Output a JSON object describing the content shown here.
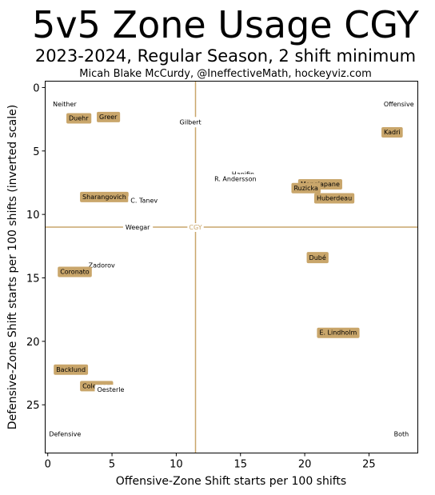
{
  "chart_data": {
    "type": "scatter",
    "title": "5v5 Zone Usage CGY",
    "subtitle": "2023-2024, Regular Season, 2 shift minimum",
    "credit": "Micah Blake McCurdy, @IneffectiveMath, hockeyviz.com",
    "xlabel": "Offensive-Zone Shift starts per 100 shifts",
    "ylabel": "Defensive-Zone Shift starts per 100 shifts (inverted scale)",
    "xlim": [
      -0.2,
      28.8
    ],
    "ylim": [
      -0.5,
      28.8
    ],
    "y_inverted": true,
    "x_ticks": [
      0,
      5,
      10,
      15,
      20,
      25
    ],
    "y_ticks": [
      0,
      5,
      10,
      15,
      20,
      25
    ],
    "grid": false,
    "accent_color": "#c9a66b",
    "team_average": {
      "label": "CGY",
      "x": 11.5,
      "y": 11.0
    },
    "corner_labels": [
      {
        "text": "Neither",
        "x": 0.4,
        "y": 1.3,
        "anchor": "start"
      },
      {
        "text": "Offensive",
        "x": 28.5,
        "y": 1.3,
        "anchor": "end"
      },
      {
        "text": "Defensive",
        "x": 0.1,
        "y": 27.3,
        "anchor": "start"
      },
      {
        "text": "Both",
        "x": 28.1,
        "y": 27.3,
        "anchor": "end"
      }
    ],
    "points": [
      {
        "name": "Duehr",
        "x": 2.4,
        "y": 2.4,
        "highlight": true
      },
      {
        "name": "Greer",
        "x": 4.7,
        "y": 2.3,
        "highlight": true
      },
      {
        "name": "Gilbert",
        "x": 11.1,
        "y": 2.7,
        "highlight": false
      },
      {
        "name": "Kadri",
        "x": 26.8,
        "y": 3.5,
        "highlight": true
      },
      {
        "name": "Hanifin",
        "x": 15.2,
        "y": 6.8,
        "highlight": false
      },
      {
        "name": "R. Andersson",
        "x": 14.6,
        "y": 7.2,
        "highlight": false
      },
      {
        "name": "Mangiapane",
        "x": 21.2,
        "y": 7.6,
        "highlight": true
      },
      {
        "name": "Ruzicka",
        "x": 20.1,
        "y": 7.9,
        "highlight": true
      },
      {
        "name": "Huberdeau",
        "x": 22.3,
        "y": 8.7,
        "highlight": true
      },
      {
        "name": "Sharangovich",
        "x": 4.4,
        "y": 8.6,
        "highlight": true
      },
      {
        "name": "C. Tanev",
        "x": 7.5,
        "y": 8.9,
        "highlight": false
      },
      {
        "name": "Weegar",
        "x": 7.0,
        "y": 11.0,
        "highlight": false
      },
      {
        "name": "Dubé",
        "x": 21.0,
        "y": 13.4,
        "highlight": true
      },
      {
        "name": "Zadorov",
        "x": 4.2,
        "y": 14.0,
        "highlight": false
      },
      {
        "name": "Coronato",
        "x": 2.1,
        "y": 14.5,
        "highlight": true
      },
      {
        "name": "E. Lindholm",
        "x": 22.6,
        "y": 19.3,
        "highlight": true
      },
      {
        "name": "Backlund",
        "x": 1.8,
        "y": 22.2,
        "highlight": true
      },
      {
        "name": "Coleman",
        "x": 3.8,
        "y": 23.5,
        "highlight": true
      },
      {
        "name": "Oesterle",
        "x": 4.9,
        "y": 23.8,
        "highlight": false
      }
    ]
  }
}
